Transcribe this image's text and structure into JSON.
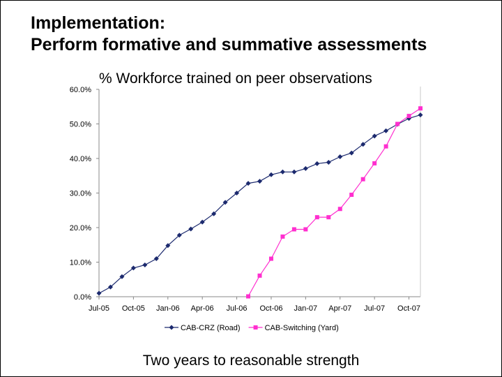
{
  "slide": {
    "title_line1": "Implementation:",
    "title_line2": "Perform formative and summative assessments",
    "caption": "Two years to reasonable strength"
  },
  "chart_data": {
    "type": "line",
    "title": "% Workforce trained on peer observations",
    "xlabel": "",
    "ylabel": "",
    "ylim": [
      0,
      60
    ],
    "y_ticks": [
      "0.0%",
      "10.0%",
      "20.0%",
      "30.0%",
      "40.0%",
      "50.0%",
      "60.0%"
    ],
    "x_ticks": [
      "Jul-05",
      "Oct-05",
      "Jan-06",
      "Apr-06",
      "Jul-06",
      "Oct-06",
      "Jan-07",
      "Apr-07",
      "Jul-07",
      "Oct-07"
    ],
    "x_range": [
      "Jul-05",
      "Nov-07"
    ],
    "grid": false,
    "legend_position": "bottom",
    "series": [
      {
        "name": "CAB-CRZ (Road)",
        "color": "#1c2a6e",
        "marker": "diamond",
        "points": [
          [
            "Jul-05",
            1.0
          ],
          [
            "Aug-05",
            2.8
          ],
          [
            "Sep-05",
            5.8
          ],
          [
            "Oct-05",
            8.3
          ],
          [
            "Nov-05",
            9.2
          ],
          [
            "Dec-05",
            11.0
          ],
          [
            "Jan-06",
            14.8
          ],
          [
            "Feb-06",
            17.8
          ],
          [
            "Mar-06",
            19.6
          ],
          [
            "Apr-06",
            21.6
          ],
          [
            "May-06",
            24.0
          ],
          [
            "Jun-06",
            27.3
          ],
          [
            "Jul-06",
            30.0
          ],
          [
            "Aug-06",
            32.8
          ],
          [
            "Sep-06",
            33.4
          ],
          [
            "Oct-06",
            35.3
          ],
          [
            "Nov-06",
            36.1
          ],
          [
            "Dec-06",
            36.1
          ],
          [
            "Jan-07",
            37.1
          ],
          [
            "Feb-07",
            38.5
          ],
          [
            "Mar-07",
            38.9
          ],
          [
            "Apr-07",
            40.5
          ],
          [
            "May-07",
            41.6
          ],
          [
            "Jun-07",
            44.1
          ],
          [
            "Jul-07",
            46.5
          ],
          [
            "Aug-07",
            48.0
          ],
          [
            "Sep-07",
            49.9
          ],
          [
            "Oct-07",
            51.6
          ],
          [
            "Nov-07",
            52.6
          ]
        ]
      },
      {
        "name": "CAB-Switching (Yard)",
        "color": "#ff2fcf",
        "marker": "square",
        "points": [
          [
            "Aug-06",
            0.1
          ],
          [
            "Sep-06",
            6.1
          ],
          [
            "Oct-06",
            11.0
          ],
          [
            "Nov-06",
            17.4
          ],
          [
            "Dec-06",
            19.5
          ],
          [
            "Jan-07",
            19.5
          ],
          [
            "Feb-07",
            23.0
          ],
          [
            "Mar-07",
            23.0
          ],
          [
            "Apr-07",
            25.4
          ],
          [
            "May-07",
            29.5
          ],
          [
            "Jun-07",
            34.0
          ],
          [
            "Jul-07",
            38.6
          ],
          [
            "Aug-07",
            43.5
          ],
          [
            "Sep-07",
            50.0
          ],
          [
            "Oct-07",
            52.3
          ],
          [
            "Nov-07",
            54.5
          ]
        ]
      }
    ]
  }
}
